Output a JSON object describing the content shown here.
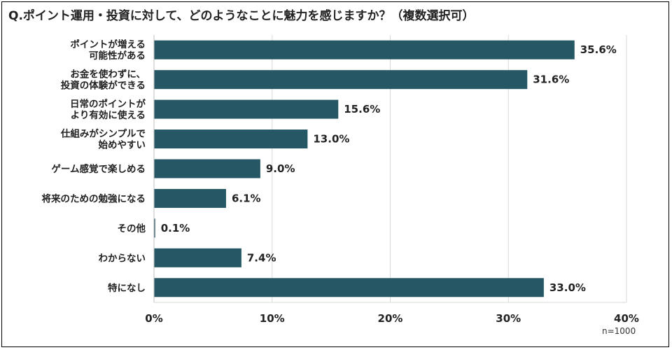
{
  "title": "Q.ポイント運用・投資に対して、どのようなことに魅力を感じますか？（複数選択可）",
  "note": "n=1000",
  "colors": {
    "bar": "#255765",
    "grid": "#d9d9d9",
    "axis": "#bfbfbf",
    "text": "#222222"
  },
  "chart_data": {
    "type": "bar",
    "orientation": "horizontal",
    "categories": [
      [
        "ポイントが増える",
        "可能性がある"
      ],
      [
        "お金を使わずに、",
        "投資の体験ができる"
      ],
      [
        "日常のポイントが",
        "より有効に使える"
      ],
      [
        "仕組みがシンプルで",
        "始めやすい"
      ],
      [
        "ゲーム感覚で楽しめる"
      ],
      [
        "将来のための勉強になる"
      ],
      [
        "その他"
      ],
      [
        "わからない"
      ],
      [
        "特になし"
      ]
    ],
    "values": [
      35.6,
      31.6,
      15.6,
      13.0,
      9.0,
      6.1,
      0.1,
      7.4,
      33.0
    ],
    "value_labels": [
      "35.6%",
      "31.6%",
      "15.6%",
      "13.0%",
      "9.0%",
      "6.1%",
      "0.1%",
      "7.4%",
      "33.0%"
    ],
    "xlim": [
      0,
      40
    ],
    "xticks": [
      0,
      10,
      20,
      30,
      40
    ],
    "xtick_labels": [
      "0%",
      "10%",
      "20%",
      "30%",
      "40%"
    ],
    "grid": true,
    "legend": "none"
  }
}
